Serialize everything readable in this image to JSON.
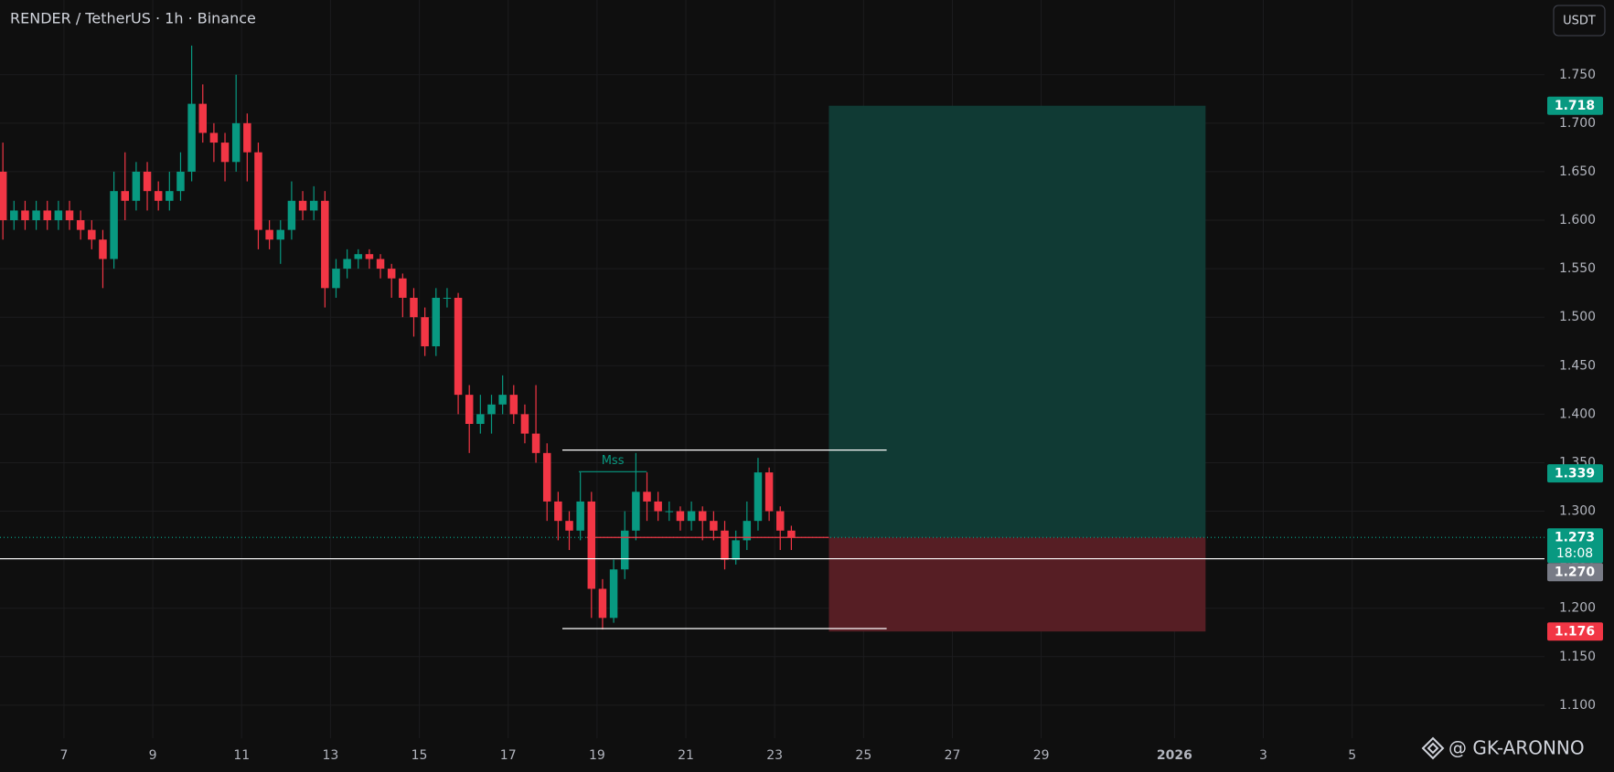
{
  "chart_data": {
    "type": "candlestick",
    "title": "RENDER / TetherUS · 1h · Binance",
    "currency": "USDT",
    "watermark": "@ GK-ARONNO",
    "up_color": "#089981",
    "down_color": "#f23645",
    "grid": true,
    "xlim": [
      5.56,
      40.33
    ],
    "ylim": [
      1.066,
      1.827
    ],
    "xticks": [
      7,
      9,
      11,
      13,
      15,
      17,
      19,
      21,
      23,
      25,
      27,
      29,
      {
        "value": 32,
        "label": "2026",
        "bold": true
      },
      {
        "value": 34,
        "label": "3"
      },
      {
        "value": 36,
        "label": "5"
      }
    ],
    "yticks": [
      {
        "value": 1.1,
        "label": "1.100"
      },
      {
        "value": 1.15,
        "label": "1.150"
      },
      {
        "value": 1.2,
        "label": "1.200"
      },
      {
        "value": 1.25,
        "label": "1.250"
      },
      {
        "value": 1.3,
        "label": "1.300"
      },
      {
        "value": 1.35,
        "label": "1.350"
      },
      {
        "value": 1.4,
        "label": "1.400"
      },
      {
        "value": 1.45,
        "label": "1.450"
      },
      {
        "value": 1.5,
        "label": "1.500"
      },
      {
        "value": 1.55,
        "label": "1.550"
      },
      {
        "value": 1.6,
        "label": "1.600"
      },
      {
        "value": 1.65,
        "label": "1.650"
      },
      {
        "value": 1.7,
        "label": "1.700"
      },
      {
        "value": 1.75,
        "label": "1.750"
      }
    ],
    "x": [
      5.5,
      5.75,
      6,
      6.25,
      6.5,
      6.75,
      7,
      7.25,
      7.5,
      7.75,
      8,
      8.25,
      8.5,
      8.75,
      9,
      9.25,
      9.5,
      9.75,
      10,
      10.25,
      10.5,
      10.75,
      11,
      11.25,
      11.5,
      11.75,
      12,
      12.25,
      12.5,
      12.75,
      13,
      13.25,
      13.5,
      13.75,
      14,
      14.25,
      14.5,
      14.75,
      15,
      15.25,
      15.5,
      15.75,
      16,
      16.25,
      16.5,
      16.75,
      17,
      17.25,
      17.5,
      17.75,
      18,
      18.25,
      18.5,
      18.75,
      19,
      19.25,
      19.5,
      19.75,
      20,
      20.25,
      20.5,
      20.75,
      21,
      21.25,
      21.5,
      21.75,
      22,
      22.25,
      22.5,
      22.75,
      23,
      23.25
    ],
    "open": [
      1.65,
      1.6,
      1.61,
      1.6,
      1.61,
      1.6,
      1.61,
      1.6,
      1.59,
      1.58,
      1.56,
      1.63,
      1.62,
      1.65,
      1.63,
      1.62,
      1.63,
      1.65,
      1.72,
      1.69,
      1.68,
      1.66,
      1.7,
      1.67,
      1.59,
      1.58,
      1.59,
      1.62,
      1.61,
      1.62,
      1.53,
      1.55,
      1.56,
      1.565,
      1.56,
      1.55,
      1.54,
      1.52,
      1.5,
      1.47,
      1.52,
      1.52,
      1.42,
      1.39,
      1.4,
      1.41,
      1.42,
      1.4,
      1.38,
      1.36,
      1.31,
      1.29,
      1.28,
      1.31,
      1.22,
      1.19,
      1.24,
      1.28,
      1.32,
      1.31,
      1.3,
      1.3,
      1.29,
      1.3,
      1.29,
      1.28,
      1.25,
      1.27,
      1.29,
      1.34,
      1.3,
      1.28
    ],
    "high": [
      1.68,
      1.62,
      1.62,
      1.62,
      1.62,
      1.62,
      1.62,
      1.61,
      1.6,
      1.59,
      1.65,
      1.67,
      1.66,
      1.66,
      1.64,
      1.65,
      1.67,
      1.78,
      1.74,
      1.7,
      1.69,
      1.75,
      1.71,
      1.68,
      1.6,
      1.6,
      1.64,
      1.63,
      1.635,
      1.63,
      1.56,
      1.57,
      1.57,
      1.57,
      1.565,
      1.555,
      1.545,
      1.53,
      1.51,
      1.53,
      1.53,
      1.525,
      1.43,
      1.42,
      1.42,
      1.44,
      1.43,
      1.41,
      1.43,
      1.37,
      1.32,
      1.3,
      1.34,
      1.32,
      1.23,
      1.25,
      1.3,
      1.36,
      1.34,
      1.32,
      1.31,
      1.305,
      1.31,
      1.305,
      1.3,
      1.29,
      1.28,
      1.31,
      1.355,
      1.345,
      1.305,
      1.285
    ],
    "low": [
      1.58,
      1.59,
      1.59,
      1.59,
      1.59,
      1.59,
      1.59,
      1.58,
      1.57,
      1.53,
      1.55,
      1.6,
      1.61,
      1.61,
      1.61,
      1.61,
      1.62,
      1.64,
      1.68,
      1.66,
      1.64,
      1.65,
      1.64,
      1.57,
      1.57,
      1.555,
      1.58,
      1.6,
      1.6,
      1.51,
      1.52,
      1.54,
      1.55,
      1.55,
      1.54,
      1.52,
      1.5,
      1.48,
      1.46,
      1.46,
      1.51,
      1.4,
      1.36,
      1.38,
      1.38,
      1.4,
      1.39,
      1.37,
      1.35,
      1.29,
      1.27,
      1.26,
      1.27,
      1.19,
      1.178,
      1.185,
      1.23,
      1.27,
      1.29,
      1.29,
      1.29,
      1.28,
      1.28,
      1.27,
      1.27,
      1.24,
      1.245,
      1.26,
      1.28,
      1.29,
      1.26,
      1.26
    ],
    "close": [
      1.6,
      1.61,
      1.6,
      1.61,
      1.6,
      1.61,
      1.6,
      1.59,
      1.58,
      1.56,
      1.63,
      1.62,
      1.65,
      1.63,
      1.62,
      1.63,
      1.65,
      1.72,
      1.69,
      1.68,
      1.66,
      1.7,
      1.67,
      1.59,
      1.58,
      1.59,
      1.62,
      1.61,
      1.62,
      1.53,
      1.55,
      1.56,
      1.565,
      1.56,
      1.55,
      1.54,
      1.52,
      1.5,
      1.47,
      1.52,
      1.52,
      1.42,
      1.39,
      1.4,
      1.41,
      1.42,
      1.4,
      1.38,
      1.36,
      1.31,
      1.29,
      1.28,
      1.31,
      1.22,
      1.19,
      1.24,
      1.28,
      1.32,
      1.31,
      1.3,
      1.3,
      1.29,
      1.3,
      1.29,
      1.28,
      1.25,
      1.27,
      1.29,
      1.34,
      1.3,
      1.28,
      1.273
    ],
    "position": {
      "x": [
        24.22,
        32.7
      ],
      "entry": 1.273,
      "target": 1.718,
      "stop": 1.176,
      "target_color": "#103a34",
      "stop_color": "#561e24"
    },
    "hlines": [
      {
        "value": 1.273,
        "color": "#089981",
        "style": "dotted"
      },
      {
        "value": 1.251,
        "color": "#ffffff",
        "style": "solid"
      },
      {
        "value": 1.363,
        "x": [
          18.22,
          25.52
        ],
        "color": "#ffffff",
        "style": "solid"
      },
      {
        "value": 1.179,
        "x": [
          18.22,
          25.52
        ],
        "color": "#ffffff",
        "style": "solid"
      },
      {
        "value": 1.3407,
        "x": [
          18.59,
          20.12
        ],
        "color": "#089981",
        "style": "solid",
        "label": "Mss"
      },
      {
        "value": 1.273,
        "x": [
          18.77,
          24.22
        ],
        "color": "#f23645",
        "style": "solid"
      }
    ],
    "price_labels": [
      {
        "value": 1.718,
        "label": "1.718",
        "color": "#089981"
      },
      {
        "value": 1.339,
        "label": "1.339",
        "color": "#089981"
      },
      {
        "value": 1.273,
        "label": "1.273",
        "sub": "18:08",
        "color": "#089981"
      },
      {
        "value": 1.27,
        "label": "1.270",
        "color": "#787b86"
      },
      {
        "value": 1.176,
        "label": "1.176",
        "color": "#f23645"
      }
    ]
  }
}
